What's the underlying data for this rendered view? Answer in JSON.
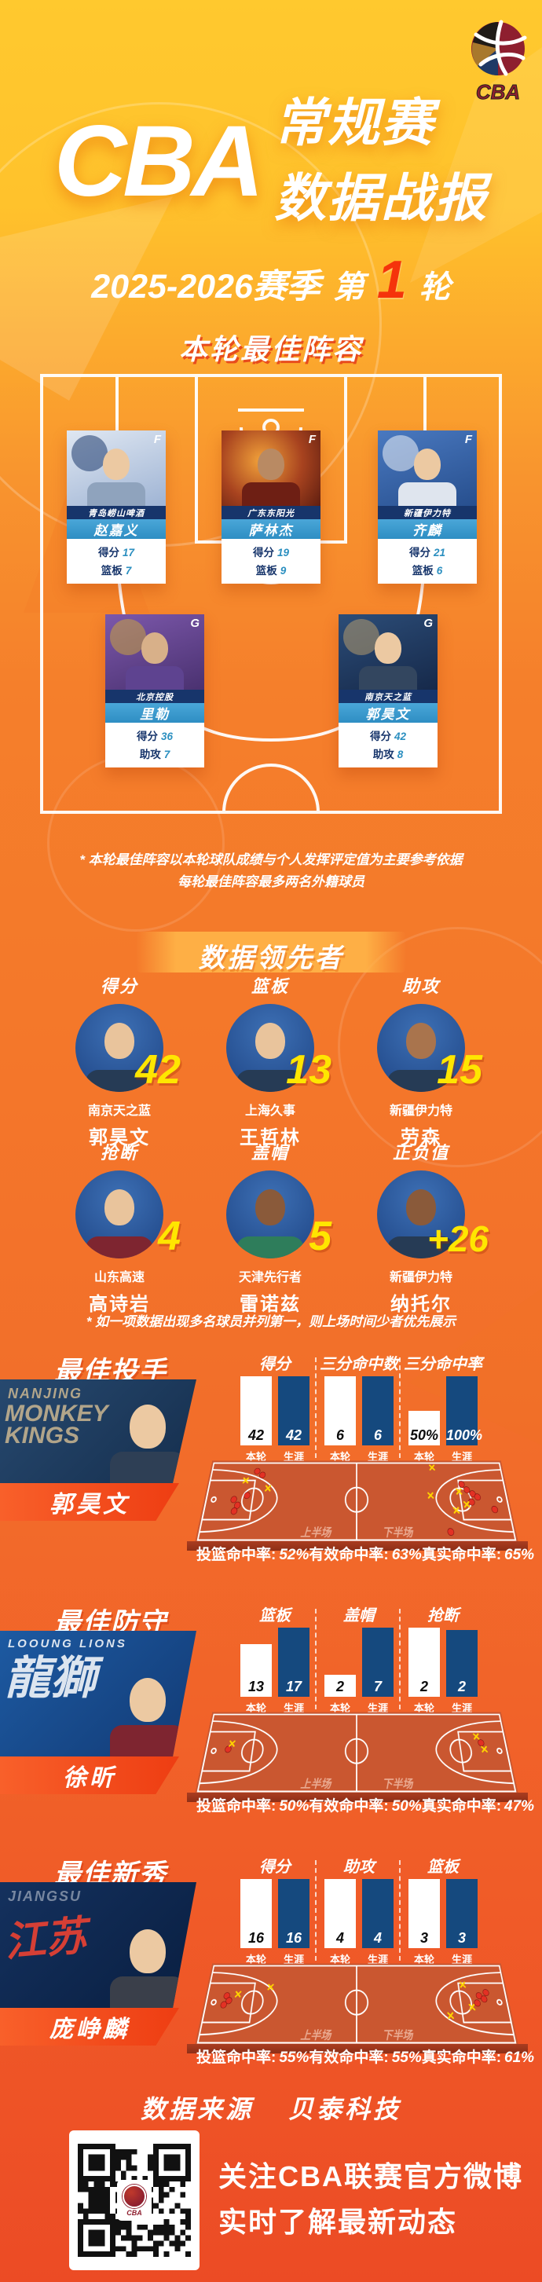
{
  "brand": {
    "logo_text": "CBA"
  },
  "header": {
    "title_en": "CBA",
    "title_zh1": "常规赛",
    "title_zh2": "数据战报",
    "season": "2025-2026赛季",
    "round_prefix": "第",
    "round_number": "1",
    "round_suffix": "轮"
  },
  "lineup": {
    "title": "本轮最佳阵容",
    "players": [
      {
        "position": "F",
        "team": "青岛崂山啤酒",
        "name": "赵嘉义",
        "stat1_label": "得分",
        "stat1_value": "17",
        "stat2_label": "篮板",
        "stat2_value": "7"
      },
      {
        "position": "F",
        "team": "广东东阳光",
        "name": "萨林杰",
        "stat1_label": "得分",
        "stat1_value": "19",
        "stat2_label": "篮板",
        "stat2_value": "9"
      },
      {
        "position": "F",
        "team": "新疆伊力特",
        "name": "齐麟",
        "stat1_label": "得分",
        "stat1_value": "21",
        "stat2_label": "篮板",
        "stat2_value": "6"
      },
      {
        "position": "G",
        "team": "北京控股",
        "name": "里勒",
        "stat1_label": "得分",
        "stat1_value": "36",
        "stat2_label": "助攻",
        "stat2_value": "7"
      },
      {
        "position": "G",
        "team": "南京天之蓝",
        "name": "郭昊文",
        "stat1_label": "得分",
        "stat1_value": "42",
        "stat2_label": "助攻",
        "stat2_value": "8"
      }
    ],
    "footnote1": "* 本轮最佳阵容以本轮球队成绩与个人发挥评定值为主要参考依据",
    "footnote2": "每轮最佳阵容最多两名外籍球员"
  },
  "leaders": {
    "title": "数据领先者",
    "items": [
      {
        "category": "得分",
        "value": "42",
        "team": "南京天之蓝",
        "name": "郭昊文"
      },
      {
        "category": "篮板",
        "value": "13",
        "team": "上海久事",
        "name": "王哲林"
      },
      {
        "category": "助攻",
        "value": "15",
        "team": "新疆伊力特",
        "name": "劳森"
      },
      {
        "category": "抢断",
        "value": "4",
        "team": "山东高速",
        "name": "高诗岩"
      },
      {
        "category": "盖帽",
        "value": "5",
        "team": "天津先行者",
        "name": "雷诺兹"
      },
      {
        "category": "正负值",
        "value": "+26",
        "team": "新疆伊力特",
        "name": "纳托尔"
      }
    ],
    "footnote": "* 如一项数据出现多名球员并列第一，则上场时间少者优先展示"
  },
  "spotlights": [
    {
      "title": "最佳投手",
      "player": "郭昊文",
      "logo_line1": "NANJING",
      "logo_line2": "MONKEYKINGS",
      "round_label": "本轮",
      "career_label": "生涯",
      "half1": "上半场",
      "half2": "下半场",
      "stats": [
        {
          "label": "得分",
          "round": "42",
          "career": "42"
        },
        {
          "label": "三分命中数",
          "round": "6",
          "career": "6"
        },
        {
          "label": "三分命中率",
          "round": "50%",
          "career": "100%"
        }
      ],
      "percentages": [
        {
          "label": "投篮命中率:",
          "value": "52%"
        },
        {
          "label": "有效命中率:",
          "value": "63%"
        },
        {
          "label": "真实命中率:",
          "value": "65%"
        }
      ]
    },
    {
      "title": "最佳防守",
      "player": "徐昕",
      "logo_line1": "LOOUNG LIONS",
      "logo_line2": "龍獅",
      "round_label": "本轮",
      "career_label": "生涯",
      "half1": "上半场",
      "half2": "下半场",
      "stats": [
        {
          "label": "篮板",
          "round": "13",
          "career": "17"
        },
        {
          "label": "盖帽",
          "round": "2",
          "career": "7"
        },
        {
          "label": "抢断",
          "round": "2",
          "career": "2"
        }
      ],
      "percentages": [
        {
          "label": "投篮命中率:",
          "value": "50%"
        },
        {
          "label": "有效命中率:",
          "value": "50%"
        },
        {
          "label": "真实命中率:",
          "value": "47%"
        }
      ]
    },
    {
      "title": "最佳新秀",
      "player": "庞峥麟",
      "logo_line1": "JIANGSU",
      "logo_line2": "江苏",
      "round_label": "本轮",
      "career_label": "生涯",
      "half1": "上半场",
      "half2": "下半场",
      "stats": [
        {
          "label": "得分",
          "round": "16",
          "career": "16"
        },
        {
          "label": "助攻",
          "round": "4",
          "career": "4"
        },
        {
          "label": "篮板",
          "round": "3",
          "career": "3"
        }
      ],
      "percentages": [
        {
          "label": "投篮命中率:",
          "value": "55%"
        },
        {
          "label": "有效命中率:",
          "value": "55%"
        },
        {
          "label": "真实命中率:",
          "value": "61%"
        }
      ]
    }
  ],
  "source": {
    "label": "数据来源",
    "value": "贝泰科技"
  },
  "footer": {
    "line1": "关注CBA联赛官方微博",
    "line2": "实时了解最新动态"
  },
  "colors": {
    "bg_top": "#ffc92e",
    "bg_bottom": "#ec4b25",
    "accent_red": "#f5330b",
    "bar_navy": "#15497e",
    "value_yellow": "#ffe600",
    "court_fill": "#ca5730",
    "card_team_navy": "#17356b",
    "card_name_blue": "#2e8ec3"
  },
  "chart_data": [
    {
      "type": "bar",
      "title": "最佳投手 郭昊文",
      "categories": [
        "得分",
        "三分命中数",
        "三分命中率"
      ],
      "series": [
        {
          "name": "本轮",
          "values": [
            42,
            6,
            "50%"
          ]
        },
        {
          "name": "生涯",
          "values": [
            42,
            6,
            "100%"
          ]
        }
      ],
      "annotations": [
        "投篮命中率 52%",
        "有效命中率 63%",
        "真实命中率 65%"
      ]
    },
    {
      "type": "bar",
      "title": "最佳防守 徐昕",
      "categories": [
        "篮板",
        "盖帽",
        "抢断"
      ],
      "series": [
        {
          "name": "本轮",
          "values": [
            13,
            2,
            2
          ]
        },
        {
          "name": "生涯",
          "values": [
            17,
            7,
            2
          ]
        }
      ],
      "annotations": [
        "投篮命中率 50%",
        "有效命中率 50%",
        "真实命中率 47%"
      ]
    },
    {
      "type": "bar",
      "title": "最佳新秀 庞峥麟",
      "categories": [
        "得分",
        "助攻",
        "篮板"
      ],
      "series": [
        {
          "name": "本轮",
          "values": [
            16,
            4,
            3
          ]
        },
        {
          "name": "生涯",
          "values": [
            16,
            4,
            3
          ]
        }
      ],
      "annotations": [
        "投篮命中率 55%",
        "有效命中率 55%",
        "真实命中率 61%"
      ]
    },
    {
      "type": "table",
      "title": "数据领先者",
      "categories": [
        "得分",
        "篮板",
        "助攻",
        "抢断",
        "盖帽",
        "正负值"
      ],
      "values": [
        42,
        13,
        15,
        4,
        5,
        26
      ],
      "players": [
        "郭昊文",
        "王哲林",
        "劳森",
        "高诗岩",
        "雷诺兹",
        "纳托尔"
      ]
    }
  ]
}
